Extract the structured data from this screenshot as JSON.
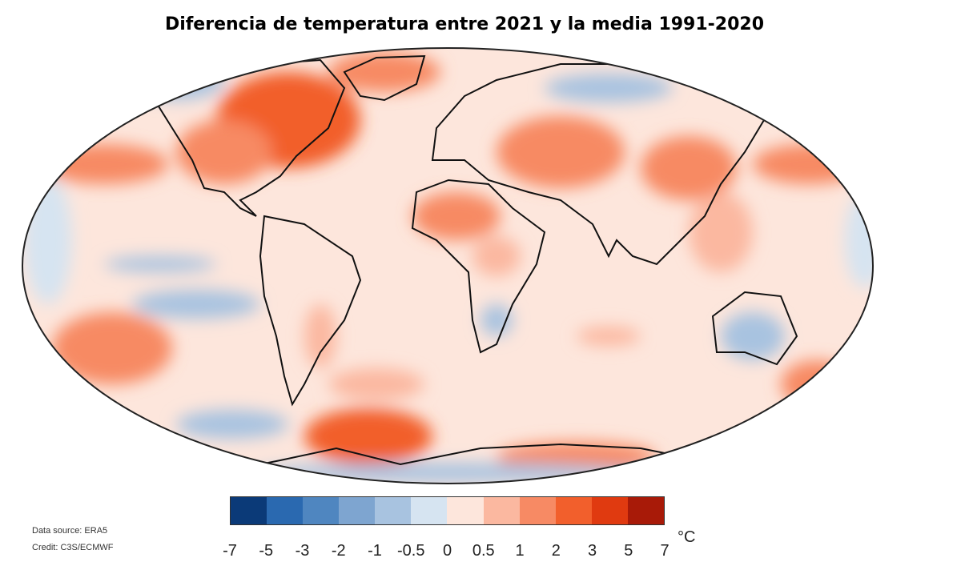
{
  "title": "Diferencia de temperatura entre 2021 y la media 1991-2020",
  "legend": {
    "unit": "°C",
    "ticks": [
      "-7",
      "-5",
      "-3",
      "-2",
      "-1",
      "-0.5",
      "0",
      "0.5",
      "1",
      "2",
      "3",
      "5",
      "7"
    ],
    "colors": [
      "#0b3a78",
      "#2a69b0",
      "#4f86c0",
      "#7ea5d0",
      "#a8c3e0",
      "#d6e4f1",
      "#fde6dc",
      "#fbb8a0",
      "#f78a64",
      "#f25f2c",
      "#e03a10",
      "#a81a08"
    ]
  },
  "credits": {
    "source": "Data source: ERA5",
    "credit": "Credit: C3S/ECMWF"
  }
}
